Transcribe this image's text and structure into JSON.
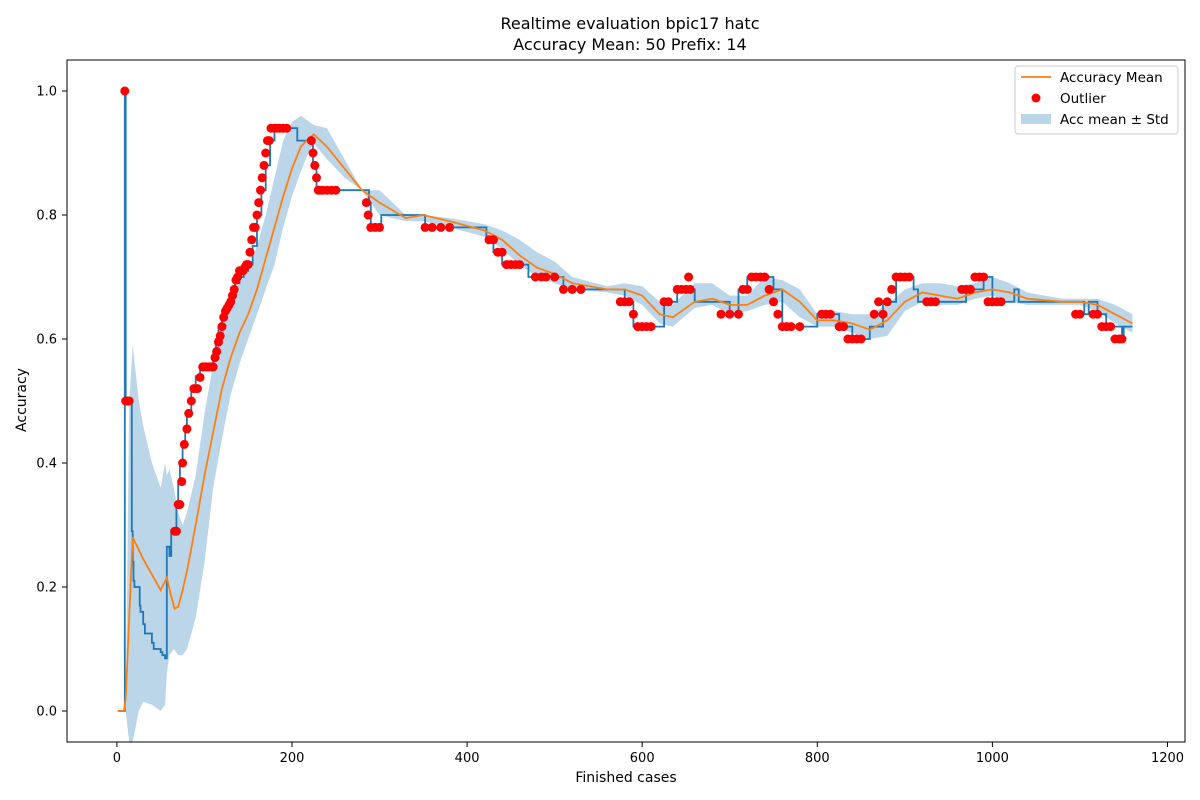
{
  "chart_data": {
    "type": "line",
    "title": "Realtime evaluation bpic17 hatc",
    "subtitle": "Accuracy Mean: 50 Prefix: 14",
    "xlabel": "Finished cases",
    "ylabel": "Accuracy",
    "xlim": [
      -57,
      1220
    ],
    "ylim": [
      -0.05,
      1.05
    ],
    "xticks": [
      0,
      200,
      400,
      600,
      800,
      1000,
      1200
    ],
    "yticks": [
      0.0,
      0.2,
      0.4,
      0.6,
      0.8,
      1.0
    ],
    "xtick_labels": [
      "0",
      "200",
      "400",
      "600",
      "800",
      "1000",
      "1200"
    ],
    "ytick_labels": [
      "0.0",
      "0.2",
      "0.4",
      "0.6",
      "0.8",
      "1.0"
    ],
    "legend": {
      "placement": "top-right",
      "entries": [
        "Accuracy Mean",
        "Outlier",
        "Acc mean ± Std"
      ]
    },
    "colors": {
      "accuracy": "#1f77b4",
      "mean": "#ff7f0e",
      "outlier": "#ff0000",
      "band": "#1f77b4"
    },
    "series": [
      {
        "name": "Accuracy",
        "x": [
          1,
          8,
          9,
          10,
          13,
          16,
          17,
          18,
          19,
          20,
          25,
          26,
          27,
          30,
          32,
          35,
          40,
          42,
          45,
          50,
          52,
          55,
          57,
          58,
          60,
          62,
          64,
          68,
          70,
          72,
          75,
          78,
          80,
          85,
          90,
          95,
          100,
          105,
          110,
          113,
          116,
          120,
          125,
          130,
          135,
          140,
          145,
          150,
          155,
          160,
          165,
          170,
          175,
          180,
          185,
          190,
          200,
          205,
          206,
          210,
          215,
          220,
          224,
          228,
          230,
          232,
          250,
          260,
          270,
          285,
          288,
          290,
          300,
          302,
          350,
          352,
          380,
          400,
          420,
          422,
          430,
          440,
          445,
          450,
          460,
          470,
          478,
          500,
          510,
          520,
          540,
          560,
          575,
          580,
          585,
          590,
          600,
          625,
          640,
          650,
          660,
          680,
          700,
          710,
          720,
          740,
          750,
          760,
          780,
          800,
          810,
          825,
          840,
          860,
          875,
          885,
          890,
          900,
          905,
          910,
          915,
          930,
          960,
          970,
          990,
          1000,
          1020,
          1025,
          1030,
          1050,
          1095,
          1105,
          1110,
          1120,
          1130,
          1140,
          1148,
          1150,
          1160
        ],
        "values": [
          0.0,
          0.0,
          1.0,
          0.5,
          0.5,
          0.5,
          0.29,
          0.24,
          0.21,
          0.2,
          0.2,
          0.17,
          0.16,
          0.14,
          0.125,
          0.125,
          0.11,
          0.1,
          0.1,
          0.095,
          0.09,
          0.085,
          0.265,
          0.265,
          0.25,
          0.29,
          0.29,
          0.333,
          0.37,
          0.4,
          0.43,
          0.455,
          0.48,
          0.52,
          0.54,
          0.555,
          0.555,
          0.56,
          0.58,
          0.6,
          0.62,
          0.64,
          0.65,
          0.67,
          0.69,
          0.7,
          0.71,
          0.72,
          0.75,
          0.8,
          0.84,
          0.88,
          0.92,
          0.94,
          0.94,
          0.94,
          0.94,
          0.94,
          0.92,
          0.92,
          0.92,
          0.92,
          0.88,
          0.84,
          0.84,
          0.84,
          0.84,
          0.84,
          0.84,
          0.84,
          0.82,
          0.78,
          0.78,
          0.8,
          0.8,
          0.78,
          0.78,
          0.78,
          0.78,
          0.76,
          0.74,
          0.72,
          0.72,
          0.72,
          0.72,
          0.7,
          0.7,
          0.7,
          0.68,
          0.68,
          0.68,
          0.68,
          0.68,
          0.66,
          0.66,
          0.62,
          0.62,
          0.66,
          0.68,
          0.68,
          0.66,
          0.66,
          0.64,
          0.68,
          0.7,
          0.7,
          0.68,
          0.62,
          0.62,
          0.64,
          0.64,
          0.62,
          0.6,
          0.62,
          0.66,
          0.66,
          0.7,
          0.7,
          0.7,
          0.68,
          0.66,
          0.66,
          0.66,
          0.68,
          0.7,
          0.66,
          0.66,
          0.68,
          0.66,
          0.66,
          0.66,
          0.64,
          0.66,
          0.64,
          0.62,
          0.62,
          0.6,
          0.62,
          0.62
        ]
      },
      {
        "name": "Accuracy Mean",
        "x": [
          1,
          8,
          10,
          14,
          18,
          25,
          30,
          40,
          50,
          57,
          62,
          66,
          70,
          75,
          80,
          90,
          100,
          110,
          120,
          130,
          140,
          150,
          160,
          170,
          180,
          190,
          200,
          210,
          220,
          225,
          240,
          260,
          280,
          300,
          330,
          350,
          380,
          420,
          440,
          460,
          480,
          500,
          520,
          560,
          580,
          600,
          620,
          635,
          660,
          680,
          700,
          720,
          740,
          760,
          780,
          800,
          820,
          840,
          860,
          880,
          900,
          920,
          940,
          960,
          980,
          1000,
          1020,
          1040,
          1080,
          1100,
          1120,
          1140,
          1160
        ],
        "values": [
          0.0,
          0.0,
          0.02,
          0.15,
          0.28,
          0.26,
          0.245,
          0.22,
          0.195,
          0.215,
          0.185,
          0.165,
          0.168,
          0.195,
          0.225,
          0.3,
          0.38,
          0.45,
          0.52,
          0.57,
          0.61,
          0.64,
          0.68,
          0.73,
          0.78,
          0.83,
          0.875,
          0.91,
          0.925,
          0.93,
          0.91,
          0.875,
          0.84,
          0.82,
          0.795,
          0.8,
          0.79,
          0.775,
          0.76,
          0.735,
          0.715,
          0.705,
          0.69,
          0.68,
          0.68,
          0.67,
          0.64,
          0.635,
          0.66,
          0.665,
          0.655,
          0.655,
          0.67,
          0.68,
          0.66,
          0.63,
          0.63,
          0.625,
          0.615,
          0.63,
          0.66,
          0.675,
          0.67,
          0.665,
          0.675,
          0.68,
          0.675,
          0.665,
          0.66,
          0.66,
          0.655,
          0.64,
          0.625
        ]
      },
      {
        "name": "Outlier",
        "x": [
          9,
          10,
          12,
          14,
          66,
          68,
          70,
          72,
          74,
          75,
          77,
          80,
          82,
          85,
          88,
          92,
          95,
          98,
          100,
          102,
          105,
          108,
          110,
          112,
          114,
          116,
          118,
          120,
          122,
          124,
          126,
          128,
          130,
          132,
          134,
          136,
          138,
          140,
          142,
          144,
          146,
          148,
          150,
          152,
          154,
          156,
          158,
          160,
          162,
          164,
          166,
          168,
          170,
          172,
          174,
          176,
          180,
          183,
          186,
          190,
          194,
          222,
          224,
          226,
          228,
          230,
          232,
          235,
          240,
          245,
          250,
          285,
          287,
          290,
          295,
          300,
          352,
          360,
          370,
          380,
          425,
          430,
          435,
          440,
          445,
          450,
          455,
          460,
          478,
          485,
          490,
          500,
          510,
          520,
          530,
          575,
          580,
          585,
          590,
          595,
          600,
          605,
          610,
          625,
          630,
          640,
          645,
          650,
          653,
          655,
          690,
          700,
          710,
          715,
          720,
          725,
          730,
          735,
          740,
          745,
          750,
          755,
          760,
          765,
          770,
          780,
          805,
          810,
          815,
          825,
          830,
          835,
          840,
          845,
          850,
          865,
          870,
          875,
          880,
          885,
          890,
          895,
          900,
          905,
          925,
          930,
          935,
          965,
          970,
          975,
          980,
          985,
          990,
          995,
          1000,
          1005,
          1010,
          1095,
          1100,
          1115,
          1120,
          1125,
          1130,
          1135,
          1140,
          1145,
          1148
        ],
        "values": [
          1.0,
          0.5,
          0.5,
          0.5,
          0.29,
          0.29,
          0.333,
          0.333,
          0.37,
          0.4,
          0.43,
          0.455,
          0.48,
          0.5,
          0.52,
          0.52,
          0.538,
          0.555,
          0.555,
          0.555,
          0.555,
          0.555,
          0.555,
          0.57,
          0.58,
          0.595,
          0.605,
          0.62,
          0.635,
          0.645,
          0.65,
          0.655,
          0.66,
          0.67,
          0.68,
          0.695,
          0.7,
          0.71,
          0.71,
          0.71,
          0.715,
          0.72,
          0.72,
          0.74,
          0.76,
          0.78,
          0.78,
          0.8,
          0.82,
          0.84,
          0.86,
          0.88,
          0.9,
          0.92,
          0.92,
          0.94,
          0.94,
          0.94,
          0.94,
          0.94,
          0.94,
          0.92,
          0.9,
          0.88,
          0.86,
          0.84,
          0.84,
          0.84,
          0.84,
          0.84,
          0.84,
          0.82,
          0.8,
          0.78,
          0.78,
          0.78,
          0.78,
          0.78,
          0.78,
          0.78,
          0.76,
          0.76,
          0.74,
          0.74,
          0.72,
          0.72,
          0.72,
          0.72,
          0.7,
          0.7,
          0.7,
          0.7,
          0.68,
          0.68,
          0.68,
          0.66,
          0.66,
          0.66,
          0.64,
          0.62,
          0.62,
          0.62,
          0.62,
          0.66,
          0.66,
          0.68,
          0.68,
          0.68,
          0.7,
          0.68,
          0.64,
          0.64,
          0.64,
          0.68,
          0.68,
          0.7,
          0.7,
          0.7,
          0.7,
          0.68,
          0.66,
          0.64,
          0.62,
          0.62,
          0.62,
          0.62,
          0.64,
          0.64,
          0.64,
          0.62,
          0.62,
          0.6,
          0.6,
          0.6,
          0.6,
          0.64,
          0.66,
          0.64,
          0.66,
          0.68,
          0.7,
          0.7,
          0.7,
          0.7,
          0.66,
          0.66,
          0.66,
          0.68,
          0.68,
          0.68,
          0.7,
          0.7,
          0.7,
          0.66,
          0.66,
          0.66,
          0.66,
          0.64,
          0.64,
          0.64,
          0.64,
          0.62,
          0.62,
          0.62,
          0.6,
          0.6,
          0.6
        ]
      },
      {
        "name": "Acc mean ± Std",
        "x": [
          10,
          14,
          18,
          25,
          30,
          40,
          50,
          55,
          57,
          60,
          65,
          70,
          75,
          80,
          90,
          100,
          110,
          120,
          130,
          140,
          150,
          160,
          170,
          180,
          190,
          200,
          210,
          220,
          225,
          240,
          260,
          280,
          300,
          330,
          350,
          380,
          420,
          440,
          460,
          480,
          500,
          520,
          560,
          580,
          600,
          620,
          635,
          660,
          680,
          700,
          720,
          740,
          760,
          780,
          800,
          820,
          840,
          860,
          880,
          900,
          920,
          940,
          960,
          980,
          1000,
          1020,
          1040,
          1080,
          1100,
          1120,
          1140,
          1160
        ],
        "upper": [
          0.0,
          0.5,
          0.59,
          0.5,
          0.46,
          0.4,
          0.36,
          0.4,
          0.38,
          0.39,
          0.36,
          0.32,
          0.3,
          0.32,
          0.38,
          0.48,
          0.56,
          0.63,
          0.66,
          0.69,
          0.71,
          0.75,
          0.8,
          0.86,
          0.92,
          0.95,
          0.96,
          0.95,
          0.945,
          0.94,
          0.89,
          0.84,
          0.84,
          0.8,
          0.8,
          0.795,
          0.785,
          0.775,
          0.76,
          0.74,
          0.725,
          0.7,
          0.685,
          0.69,
          0.685,
          0.66,
          0.655,
          0.69,
          0.69,
          0.67,
          0.67,
          0.7,
          0.695,
          0.68,
          0.64,
          0.645,
          0.64,
          0.64,
          0.655,
          0.68,
          0.69,
          0.69,
          0.685,
          0.69,
          0.7,
          0.69,
          0.675,
          0.665,
          0.665,
          0.665,
          0.655,
          0.64
        ],
        "lower": [
          0.0,
          -0.05,
          -0.05,
          0.0,
          0.015,
          0.01,
          0.0,
          0.01,
          0.06,
          0.09,
          0.1,
          0.09,
          0.09,
          0.1,
          0.15,
          0.24,
          0.36,
          0.44,
          0.51,
          0.56,
          0.6,
          0.64,
          0.68,
          0.72,
          0.78,
          0.83,
          0.87,
          0.905,
          0.915,
          0.89,
          0.86,
          0.84,
          0.8,
          0.79,
          0.79,
          0.78,
          0.765,
          0.745,
          0.72,
          0.7,
          0.69,
          0.68,
          0.675,
          0.67,
          0.655,
          0.625,
          0.62,
          0.65,
          0.655,
          0.64,
          0.645,
          0.655,
          0.66,
          0.635,
          0.62,
          0.62,
          0.61,
          0.6,
          0.605,
          0.645,
          0.66,
          0.655,
          0.655,
          0.665,
          0.67,
          0.66,
          0.655,
          0.655,
          0.655,
          0.645,
          0.625,
          0.61
        ]
      }
    ]
  }
}
